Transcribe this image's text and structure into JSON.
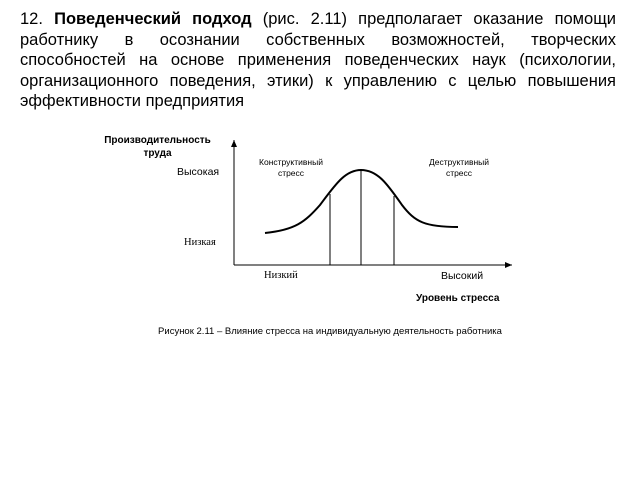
{
  "paragraph": {
    "number": "12.",
    "term": "Поведенческий подход",
    "text": "(рис. 2.11) предполагает оказание помощи работнику в осознании собственных возможностей, творческих способностей на основе применения поведенческих наук (психологии, организационного поведения, этики) к управлению с целью повышения эффективности предприятия"
  },
  "figure": {
    "y_axis_title": "Производительность труда",
    "y_high": "Высокая",
    "y_low": "Низкая",
    "zone_left": "Конструктивный стресс",
    "zone_right": "Деструктивный стресс",
    "x_low": "Низкий",
    "x_high": "Высокий",
    "x_axis_title": "Уровень стресса",
    "caption": "Рисунок 2.11 – Влияние стресса на индивидуальную деятельность работника"
  }
}
